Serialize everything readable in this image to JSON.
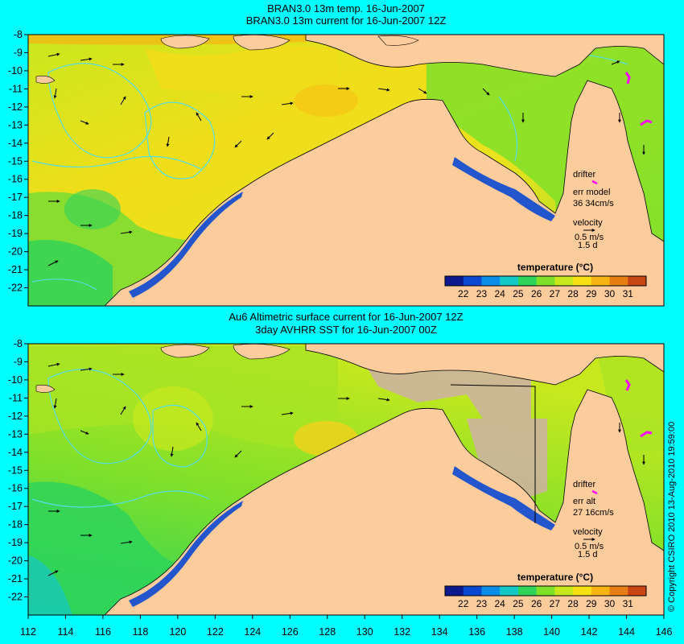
{
  "panels": [
    {
      "title_line1": "BRAN3.0 13m temp. 16-Jun-2007",
      "title_line2": "BRAN3.0 13m current for 16-Jun-2007 12Z",
      "legend": {
        "drifter_label": "drifter",
        "err_label": "err model",
        "err_value": "36 34cm/s",
        "velocity_label": "velocity",
        "scale_speed": "0.5 m/s",
        "scale_time": "1.5 d"
      },
      "colorbar": {
        "title": "temperature (°C)",
        "ticks": [
          "22",
          "23",
          "24",
          "25",
          "26",
          "27",
          "28",
          "29",
          "30",
          "31"
        ]
      }
    },
    {
      "title_line1": "Au6 Altimetric surface current for 16-Jun-2007 12Z",
      "title_line2": "3day AVHRR SST for 16-Jun-2007 00Z",
      "legend": {
        "drifter_label": "drifter",
        "err_label": "err alt",
        "err_value": "27 16cm/s",
        "velocity_label": "velocity",
        "scale_speed": "0.5 m/s",
        "scale_time": "1.5 d"
      },
      "colorbar": {
        "title": "temperature (°C)",
        "ticks": [
          "22",
          "23",
          "24",
          "25",
          "26",
          "27",
          "28",
          "29",
          "30",
          "31"
        ]
      }
    }
  ],
  "lat_labels": [
    "-8",
    "-9",
    "-10",
    "-11",
    "-12",
    "-13",
    "-14",
    "-15",
    "-16",
    "-17",
    "-18",
    "-19",
    "-20",
    "-21",
    "-22"
  ],
  "lon_labels": [
    "112",
    "114",
    "116",
    "118",
    "120",
    "122",
    "124",
    "126",
    "128",
    "130",
    "132",
    "134",
    "136",
    "138",
    "140",
    "142",
    "144",
    "146"
  ],
  "copyright": "© Copyright CSIRO 2010   13-Aug-2010 19:59:00",
  "colors": {
    "background": "#00ffff",
    "land": "#fdcc9c",
    "coastline": "#000000",
    "contour": "#55dde6",
    "drifter": "#ff00ff",
    "colorbar": [
      "#0c1a8e",
      "#0b48d2",
      "#0b8ee8",
      "#14c8c8",
      "#2ed35a",
      "#7fe02a",
      "#c8e81e",
      "#f6e014",
      "#f6b414",
      "#e67e14",
      "#c84614"
    ]
  }
}
